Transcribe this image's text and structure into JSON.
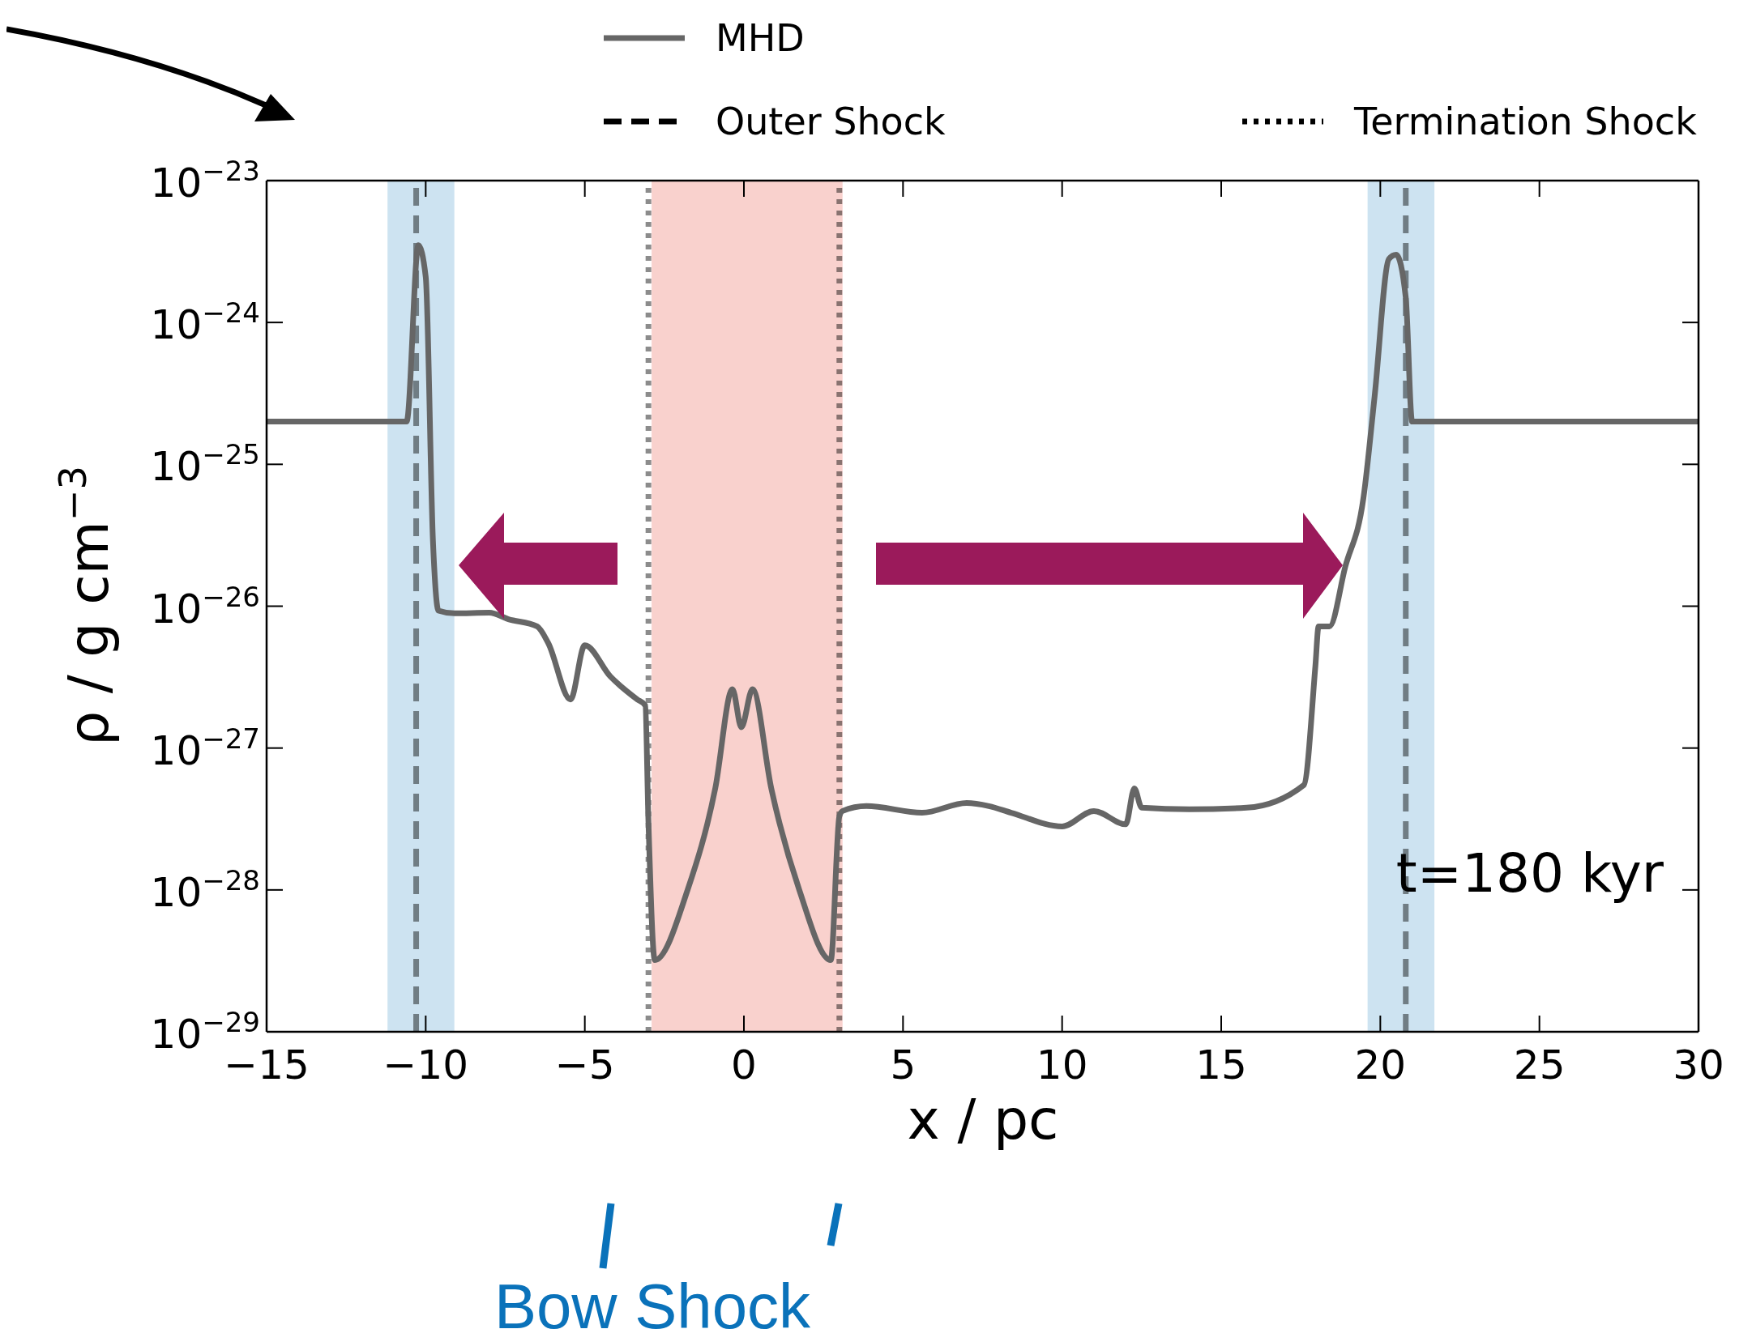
{
  "chart_data": {
    "type": "line",
    "xlabel": "x / pc",
    "ylabel": "ρ / g cm$^{−3}$",
    "x": [
      -15,
      -10.6,
      -10.23,
      -10.0,
      -9.77,
      -9.6,
      -9.1,
      -8.0,
      -7.4,
      -6.5,
      -6.15,
      -5.45,
      -5.0,
      -4.2,
      -3.35,
      -3.1,
      -3.0,
      -2.8,
      -1.77,
      -0.9,
      -0.36,
      -0.08,
      0.27,
      0.86,
      1.74,
      2.73,
      3.0,
      3.1,
      3.85,
      5.6,
      7.0,
      7.7,
      8.4,
      10.0,
      11.0,
      12.0,
      12.27,
      12.5,
      14.0,
      15.8,
      17.6,
      17.96,
      18.06,
      18.4,
      18.9,
      19.47,
      19.82,
      20.27,
      20.5,
      20.8,
      21.0,
      21.7,
      30
    ],
    "series": [
      {
        "name": "MHD",
        "color": "#666666",
        "values": [
          2e-25,
          2e-25,
          3.5e-24,
          2.1e-24,
          2.8e-26,
          9.3e-27,
          8.9e-27,
          9e-27,
          8.1e-27,
          7.2e-27,
          5.5e-27,
          2.2e-27,
          5.3e-27,
          3.2e-27,
          2.2e-27,
          2e-27,
          3e-28,
          3.2e-29,
          1e-28,
          5.2e-28,
          2.6e-27,
          1.4e-27,
          2.6e-27,
          5.2e-28,
          1e-28,
          3.2e-29,
          3.3e-28,
          3.6e-28,
          3.9e-28,
          3.5e-28,
          4.1e-28,
          3.9e-28,
          3.5e-28,
          2.8e-28,
          3.6e-28,
          2.9e-28,
          5.2e-28,
          3.8e-28,
          3.7e-28,
          3.8e-28,
          5.5e-28,
          3.8e-27,
          7.2e-27,
          7.2e-27,
          1.9e-26,
          5.8e-26,
          3e-25,
          2.8e-24,
          3e-24,
          1.5e-24,
          2e-25,
          2e-25,
          2e-25
        ]
      }
    ],
    "log": "y",
    "xlim": [
      -15,
      30
    ],
    "ylim": [
      1e-29,
      1e-23
    ],
    "xticks": [
      {
        "value": -15,
        "label": "−15"
      },
      {
        "value": -10,
        "label": "−10"
      },
      {
        "value": -5,
        "label": "−5"
      },
      0,
      5,
      10,
      15,
      20,
      25,
      30
    ],
    "yticks": [
      {
        "value": 1e-29,
        "label": "10$^{−29}$"
      },
      {
        "value": 1e-28,
        "label": "10$^{−28}$"
      },
      {
        "value": 1e-27,
        "label": "10$^{−27}$"
      },
      {
        "value": 1e-26,
        "label": "10$^{−26}$"
      },
      {
        "value": 1e-25,
        "label": "10$^{−25}$"
      },
      {
        "value": 1e-24,
        "label": "10$^{−24}$"
      },
      {
        "value": 1e-23,
        "label": "10$^{−23}$"
      }
    ],
    "bands": [
      {
        "axis": "x",
        "from": -11.2,
        "to": -9.1,
        "color": "#cde3f1"
      },
      {
        "axis": "x",
        "from": 19.6,
        "to": 21.7,
        "color": "#cde3f1"
      },
      {
        "axis": "x",
        "from": -2.9,
        "to": 3.1,
        "color": "#f9d1cd"
      }
    ],
    "ref_lines": [
      {
        "axis": "x",
        "value": -10.3,
        "label": "Outer Shock",
        "line_style": "dashed",
        "color": "#000000"
      },
      {
        "axis": "x",
        "value": 20.8,
        "label": null,
        "line_style": "dashed",
        "color": "#000000"
      },
      {
        "axis": "x",
        "value": -3.0,
        "label": "Termination Shock",
        "line_style": "dotted",
        "color": "#000000"
      },
      {
        "axis": "x",
        "value": 3.0,
        "label": null,
        "line_style": "dotted",
        "color": "#000000"
      }
    ],
    "annotations": [
      "t=180 kyr",
      "Bow Shock"
    ],
    "legend": "top",
    "line_style": "solid",
    "marker": "none"
  }
}
